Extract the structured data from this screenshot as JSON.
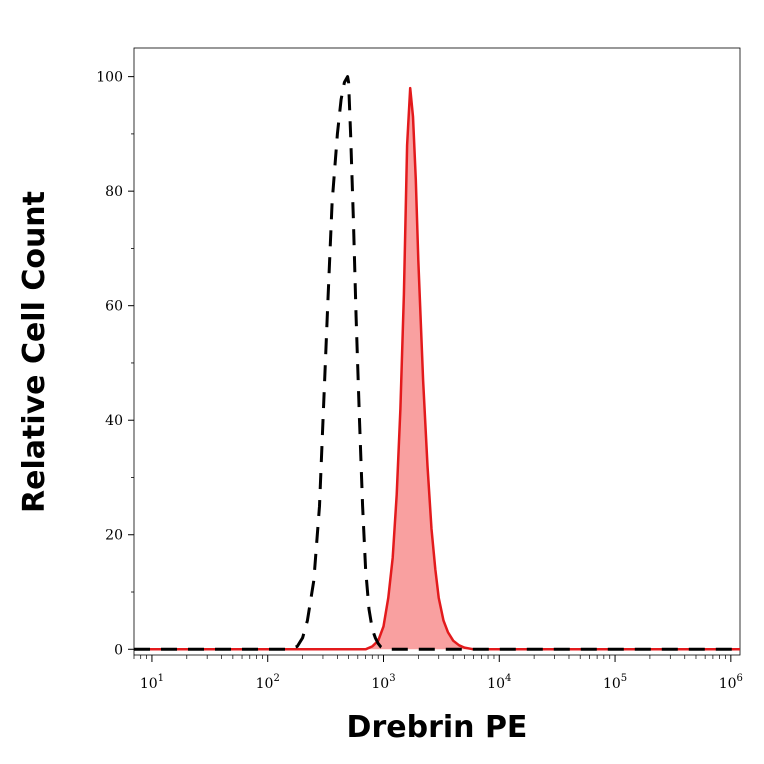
{
  "chart_data": {
    "type": "area",
    "title": "",
    "xlabel": "Drebrin PE",
    "ylabel": "Relative Cell Count",
    "xscale": "log",
    "xlim": [
      7,
      1200000
    ],
    "ylim": [
      -1,
      105
    ],
    "grid": false,
    "x_ticks": [
      {
        "base": "10",
        "exp": "1",
        "value": 10
      },
      {
        "base": "10",
        "exp": "2",
        "value": 100
      },
      {
        "base": "10",
        "exp": "3",
        "value": 1000
      },
      {
        "base": "10",
        "exp": "4",
        "value": 10000
      },
      {
        "base": "10",
        "exp": "5",
        "value": 100000
      },
      {
        "base": "10",
        "exp": "6",
        "value": 1000000
      }
    ],
    "y_ticks": [
      {
        "label": "0",
        "value": 0
      },
      {
        "label": "20",
        "value": 20
      },
      {
        "label": "40",
        "value": 40
      },
      {
        "label": "60",
        "value": 60
      },
      {
        "label": "80",
        "value": 80
      },
      {
        "label": "100",
        "value": 100
      }
    ],
    "series": [
      {
        "style": "dashed",
        "color": "#000000",
        "x": [
          7,
          150,
          180,
          200,
          220,
          250,
          280,
          300,
          330,
          360,
          400,
          430,
          460,
          490,
          500,
          520,
          550,
          580,
          620,
          660,
          700,
          750,
          800,
          850,
          900,
          950,
          1000,
          1100,
          1200,
          1400,
          1000000,
          1200000
        ],
        "y": [
          0,
          0,
          0.5,
          2,
          5,
          12,
          25,
          40,
          60,
          78,
          90,
          96,
          99,
          100,
          99,
          90,
          75,
          58,
          40,
          25,
          14,
          7,
          3.5,
          2,
          1,
          0.4,
          0.1,
          0,
          0,
          0,
          0,
          0
        ]
      },
      {
        "style": "filled",
        "color": "#e31a1c",
        "fill": "#f9a0a0",
        "x": [
          7,
          700,
          800,
          900,
          1000,
          1100,
          1200,
          1300,
          1400,
          1500,
          1600,
          1700,
          1800,
          1900,
          2000,
          2200,
          2400,
          2600,
          2800,
          3000,
          3300,
          3600,
          4000,
          4500,
          5000,
          6000,
          1200000
        ],
        "y": [
          0,
          0,
          0.5,
          1.5,
          4,
          9,
          16,
          27,
          42,
          62,
          88,
          98,
          93,
          82,
          68,
          47,
          32,
          21,
          14,
          9,
          5,
          3,
          1.5,
          0.7,
          0.3,
          0,
          0
        ]
      }
    ]
  }
}
